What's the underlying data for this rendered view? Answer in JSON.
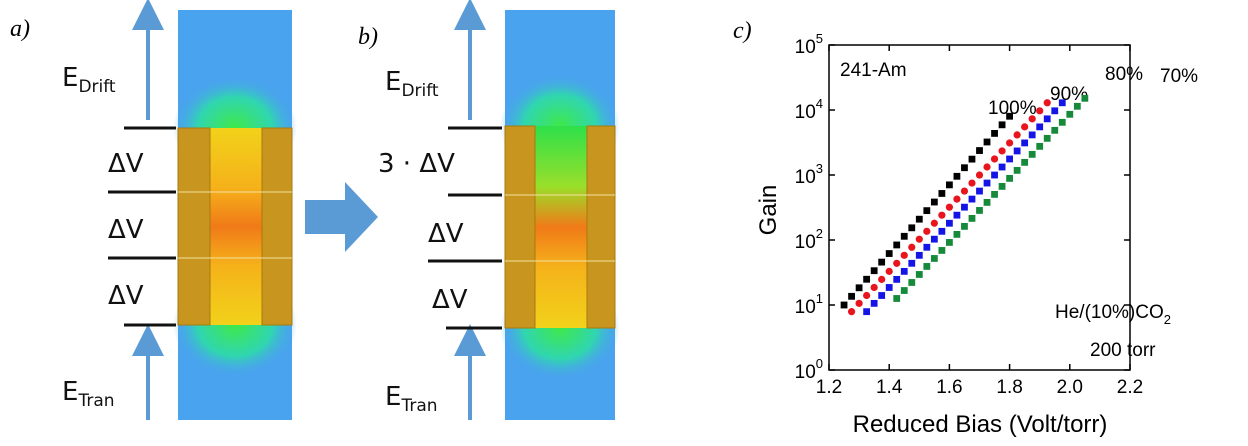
{
  "diagram_a": {
    "label": "a)",
    "drift_e": "E",
    "drift_sub": "Drift",
    "gaps": [
      "ΔV",
      "ΔV",
      "ΔV"
    ],
    "tran_e": "E",
    "tran_sub": "Tran"
  },
  "diagram_b": {
    "label": "b)",
    "drift_e": "E",
    "drift_sub": "Drift",
    "gaps": [
      "3 · ΔV",
      "ΔV",
      "ΔV"
    ],
    "tran_e": "E",
    "tran_sub": "Tran"
  },
  "chart_data": {
    "type": "scatter",
    "panel_label": "c)",
    "x_label": "Reduced Bias (Volt/torr)",
    "y_label": "Gain",
    "xlim": [
      1.2,
      2.2
    ],
    "xticks": [
      1.2,
      1.4,
      1.6,
      1.8,
      {
        "value": 2,
        "label": "2.0"
      },
      2.2
    ],
    "ylim": [
      1,
      100000
    ],
    "y_log": true,
    "yticks": [
      {
        "value": 1,
        "label": "10",
        "sup": "0"
      },
      {
        "value": 10,
        "label": "10",
        "sup": "1"
      },
      {
        "value": 100,
        "label": "10",
        "sup": "2"
      },
      {
        "value": 1000,
        "label": "10",
        "sup": "3"
      },
      {
        "value": 10000,
        "label": "10",
        "sup": "4"
      },
      {
        "value": 100000,
        "label": "10",
        "sup": "5"
      }
    ],
    "annotations": [
      {
        "text": "241-Am"
      },
      {
        "text": "He/(10%)CO",
        "sub": "2"
      },
      {
        "text": "200 torr"
      }
    ],
    "series": [
      {
        "name": "100%",
        "color": "#000000",
        "marker": "square",
        "x": [
          1.25,
          1.275,
          1.3,
          1.325,
          1.35,
          1.375,
          1.4,
          1.425,
          1.45,
          1.475,
          1.5,
          1.525,
          1.55,
          1.575,
          1.6,
          1.625,
          1.65,
          1.675,
          1.7,
          1.725,
          1.75,
          1.775,
          1.8
        ],
        "values": [
          10,
          13.6,
          18.4,
          24.9,
          33.7,
          45.7,
          61.9,
          83.9,
          114,
          154,
          209,
          283,
          384,
          520,
          705,
          955,
          1294,
          1754,
          2377,
          3221,
          4365,
          5916,
          8017
        ]
      },
      {
        "name": "90%",
        "color": "#e8141e",
        "marker": "circle",
        "x": [
          1.275,
          1.3,
          1.325,
          1.35,
          1.375,
          1.4,
          1.425,
          1.45,
          1.475,
          1.5,
          1.525,
          1.55,
          1.575,
          1.6,
          1.625,
          1.65,
          1.675,
          1.7,
          1.725,
          1.75,
          1.775,
          1.8,
          1.825,
          1.85,
          1.875,
          1.9,
          1.925
        ],
        "values": [
          7.9,
          10.6,
          14,
          18.6,
          24.8,
          32.9,
          43.8,
          58.1,
          77.3,
          103,
          136,
          181,
          241,
          320,
          426,
          566,
          752,
          999,
          1327,
          1764,
          2344,
          3115,
          4140,
          5502,
          7311,
          9716,
          12912
        ]
      },
      {
        "name": "80%",
        "color": "#1414e6",
        "marker": "square",
        "x": [
          1.325,
          1.35,
          1.375,
          1.4,
          1.425,
          1.45,
          1.475,
          1.5,
          1.525,
          1.55,
          1.575,
          1.6,
          1.625,
          1.65,
          1.675,
          1.7,
          1.725,
          1.75,
          1.775,
          1.8,
          1.825,
          1.85,
          1.875,
          1.9,
          1.925,
          1.95,
          1.975
        ],
        "values": [
          7.9,
          10.6,
          14,
          18.6,
          24.8,
          32.9,
          43.8,
          58.1,
          77.3,
          103,
          136,
          181,
          241,
          320,
          426,
          566,
          752,
          999,
          1327,
          1764,
          2344,
          3115,
          4140,
          5502,
          7311,
          9716,
          12912
        ]
      },
      {
        "name": "70%",
        "color": "#168a3a",
        "label_color": "#1a8c7a",
        "marker": "square",
        "x": [
          1.425,
          1.45,
          1.475,
          1.5,
          1.525,
          1.55,
          1.575,
          1.6,
          1.625,
          1.65,
          1.675,
          1.7,
          1.725,
          1.75,
          1.775,
          1.8,
          1.825,
          1.85,
          1.875,
          1.9,
          1.925,
          1.95,
          1.975,
          2.0,
          2.025,
          2.05
        ],
        "values": [
          12.6,
          16.7,
          22.2,
          29.5,
          39.2,
          52,
          69.1,
          91.7,
          122,
          162,
          215,
          285,
          379,
          503,
          668,
          887,
          1178,
          1564,
          2078,
          2759,
          3664,
          4866,
          6462,
          8582,
          11398,
          15136
        ]
      }
    ]
  }
}
